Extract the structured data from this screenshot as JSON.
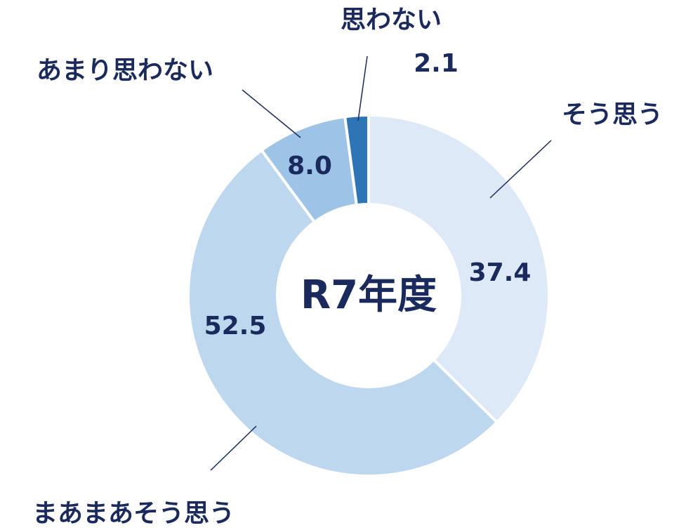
{
  "chart_data": {
    "type": "donut",
    "center_text": "R7年度",
    "categories": [
      "そう思う",
      "まあまあそう思う",
      "あまり思わない",
      "思わない"
    ],
    "values": [
      37.4,
      52.5,
      8.0,
      2.1
    ],
    "value_labels": [
      "37.4",
      "52.5",
      "8.0",
      "2.1"
    ],
    "colors": [
      "#dde9f6",
      "#bdd7ee",
      "#9dc3e6",
      "#2e75b6"
    ]
  }
}
